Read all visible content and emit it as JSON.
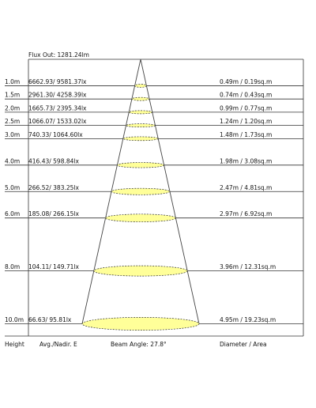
{
  "header": {
    "flux_out": "Flux Out: 1281.24lm"
  },
  "footer": {
    "height_label": "Height",
    "avg_label": "Avg./Nadir. E",
    "beam_angle_label": "Beam Angle: 27.8°",
    "diameter_label": "Diameter / Area"
  },
  "colors": {
    "ellipse_fill": "#ffff99",
    "line": "#333333",
    "beam": "#444444"
  },
  "rows": [
    {
      "height_m": 1,
      "height": "1.0m",
      "illum": "6662.93/ 9581.37lx",
      "diam": "0.49m / 0.19sq.m",
      "diameter_m": 0.49
    },
    {
      "height_m": 1.5,
      "height": "1.5m",
      "illum": "2961.30/ 4258.39lx",
      "diam": "0.74m / 0.43sq.m",
      "diameter_m": 0.74
    },
    {
      "height_m": 2,
      "height": "2.0m",
      "illum": "1665.73/ 2395.34lx",
      "diam": "0.99m / 0.77sq.m",
      "diameter_m": 0.99
    },
    {
      "height_m": 2.5,
      "height": "2.5m",
      "illum": "1066.07/ 1533.02lx",
      "diam": "1.24m / 1.20sq.m",
      "diameter_m": 1.24
    },
    {
      "height_m": 3,
      "height": "3.0m",
      "illum": "740.33/ 1064.60lx",
      "diam": "1.48m / 1.73sq.m",
      "diameter_m": 1.48
    },
    {
      "height_m": 4,
      "height": "4.0m",
      "illum": "416.43/ 598.84lx",
      "diam": "1.98m / 3.08sq.m",
      "diameter_m": 1.98
    },
    {
      "height_m": 5,
      "height": "5.0m",
      "illum": "266.52/ 383.25lx",
      "diam": "2.47m / 4.81sq.m",
      "diameter_m": 2.47
    },
    {
      "height_m": 6,
      "height": "6.0m",
      "illum": "185.08/ 266.15lx",
      "diam": "2.97m / 6.92sq.m",
      "diameter_m": 2.97
    },
    {
      "height_m": 8,
      "height": "8.0m",
      "illum": "104.11/ 149.71lx",
      "diam": "3.96m / 12.31sq.m",
      "diameter_m": 3.96
    },
    {
      "height_m": 10,
      "height": "10.0m",
      "illum": "66.63/ 95.81lx",
      "diam": "4.95m / 19.23sq.m",
      "diameter_m": 4.95
    }
  ]
}
